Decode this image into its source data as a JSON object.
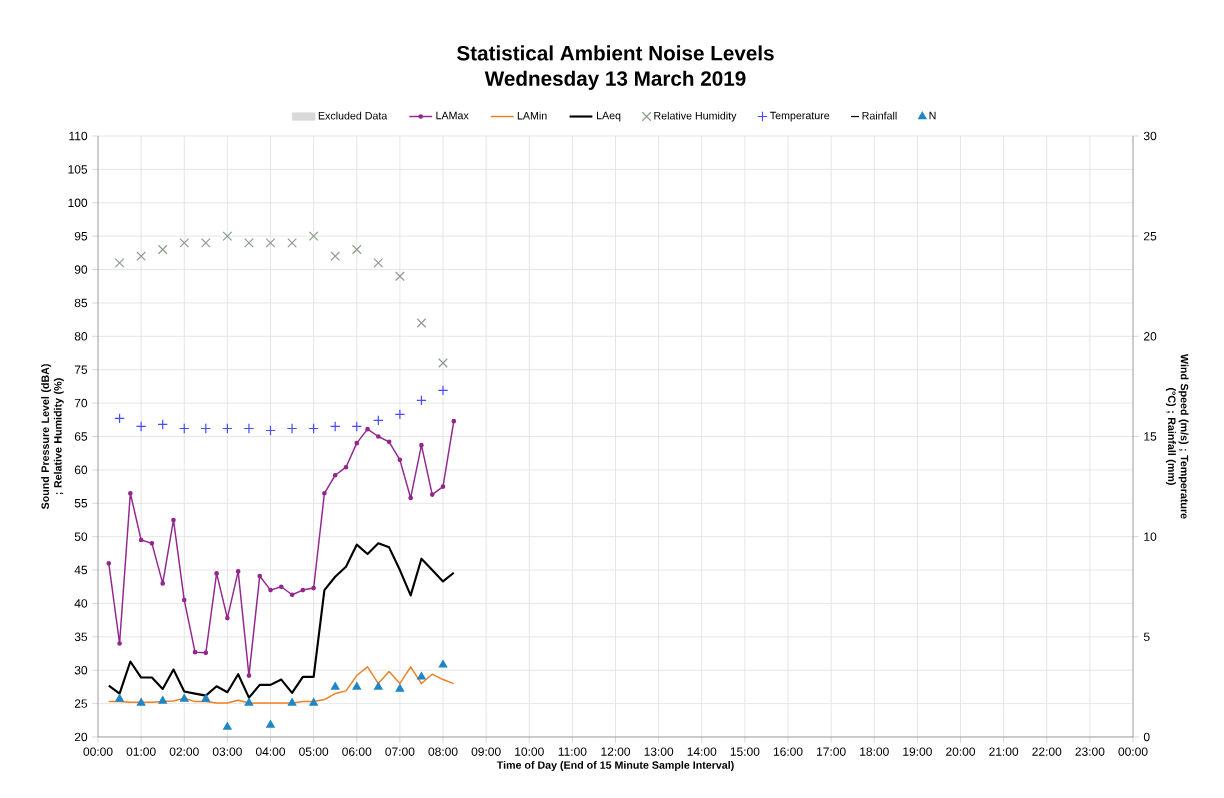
{
  "chart_data": {
    "type": "line",
    "title": "Statistical Ambient Noise Levels",
    "subtitle": "Wednesday 13 March 2019",
    "xlabel": "Time of Day (End of 15 Minute Sample Interval)",
    "ylabel": "Sound Pressure Level (dBA) ; Relative Humidity (%)",
    "y2label": "Wind Speed (m/s) ; Temperature (°C) ; Rainfall (mm)",
    "xlim": [
      0,
      24
    ],
    "xticks": [
      {
        "value": 0,
        "label": "00:00"
      },
      {
        "value": 1,
        "label": "01:00"
      },
      {
        "value": 2,
        "label": "02:00"
      },
      {
        "value": 3,
        "label": "03:00"
      },
      {
        "value": 4,
        "label": "04:00"
      },
      {
        "value": 5,
        "label": "05:00"
      },
      {
        "value": 6,
        "label": "06:00"
      },
      {
        "value": 7,
        "label": "07:00"
      },
      {
        "value": 8,
        "label": "08:00"
      },
      {
        "value": 9,
        "label": "09:00"
      },
      {
        "value": 10,
        "label": "10:00"
      },
      {
        "value": 11,
        "label": "11:00"
      },
      {
        "value": 12,
        "label": "12:00"
      },
      {
        "value": 13,
        "label": "13:00"
      },
      {
        "value": 14,
        "label": "14:00"
      },
      {
        "value": 15,
        "label": "15:00"
      },
      {
        "value": 16,
        "label": "16:00"
      },
      {
        "value": 17,
        "label": "17:00"
      },
      {
        "value": 18,
        "label": "18:00"
      },
      {
        "value": 19,
        "label": "19:00"
      },
      {
        "value": 20,
        "label": "20:00"
      },
      {
        "value": 21,
        "label": "21:00"
      },
      {
        "value": 22,
        "label": "22:00"
      },
      {
        "value": 23,
        "label": "23:00"
      },
      {
        "value": 24,
        "label": "00:00"
      }
    ],
    "ylim": [
      20,
      110
    ],
    "yticks": [
      20,
      25,
      30,
      35,
      40,
      45,
      50,
      55,
      60,
      65,
      70,
      75,
      80,
      85,
      90,
      95,
      100,
      105,
      110
    ],
    "y2lim": [
      0,
      30
    ],
    "y2ticks": [
      0,
      5,
      10,
      15,
      20,
      25,
      30
    ],
    "grid": true,
    "legend": "top",
    "series": [
      {
        "name": "Excluded Data",
        "type": "area",
        "color": "#d9d9d9"
      },
      {
        "name": "LAMax",
        "marker": "circle",
        "color": "#93278f",
        "x": [
          0.25,
          0.5,
          0.75,
          1,
          1.25,
          1.5,
          1.75,
          2,
          2.25,
          2.5,
          2.75,
          3,
          3.25,
          3.5,
          3.75,
          4,
          4.25,
          4.5,
          4.75,
          5,
          5.25,
          5.5,
          5.75,
          6,
          6.25,
          6.5,
          6.75,
          7,
          7.25,
          7.5,
          7.75,
          8,
          8.25
        ],
        "values": [
          46,
          34,
          56.5,
          49.5,
          49,
          43,
          52.5,
          40.5,
          32.7,
          32.6,
          44.5,
          37.8,
          44.8,
          29.2,
          44.1,
          42,
          42.5,
          41.3,
          42,
          42.3,
          56.5,
          59.2,
          60.4,
          64,
          66.1,
          65,
          64.2,
          61.5,
          55.8,
          63.7,
          56.3,
          57.5,
          67.3
        ]
      },
      {
        "name": "LAMin",
        "color": "#f07f21",
        "x": [
          0.25,
          0.5,
          0.75,
          1,
          1.25,
          1.5,
          1.75,
          2,
          2.25,
          2.5,
          2.75,
          3,
          3.25,
          3.5,
          3.75,
          4,
          4.25,
          4.5,
          4.75,
          5,
          5.25,
          5.5,
          5.75,
          6,
          6.25,
          6.5,
          6.75,
          7,
          7.25,
          7.5,
          7.75,
          8,
          8.25
        ],
        "values": [
          25.3,
          25.3,
          25.2,
          25.2,
          25.2,
          25.3,
          25.4,
          25.8,
          25.3,
          25.3,
          25.1,
          25.1,
          25.5,
          25.1,
          25.1,
          25.1,
          25.1,
          25.1,
          25.3,
          25.3,
          25.6,
          26.5,
          26.9,
          29.2,
          30.5,
          28.0,
          29.8,
          28.0,
          30.5,
          28.0,
          29.4,
          28.6,
          28.0
        ]
      },
      {
        "name": "LAeq",
        "color": "#000000",
        "x": [
          0.25,
          0.5,
          0.75,
          1,
          1.25,
          1.5,
          1.75,
          2,
          2.25,
          2.5,
          2.75,
          3,
          3.25,
          3.5,
          3.75,
          4,
          4.25,
          4.5,
          4.75,
          5,
          5.25,
          5.5,
          5.75,
          6,
          6.25,
          6.5,
          6.75,
          7,
          7.25,
          7.5,
          7.75,
          8,
          8.25
        ],
        "values": [
          27.7,
          26.5,
          31.3,
          28.9,
          28.9,
          27.2,
          30.1,
          26.8,
          26.5,
          26.2,
          27.6,
          26.7,
          29.4,
          25.9,
          27.8,
          27.8,
          28.6,
          26.6,
          29.0,
          29.0,
          42,
          44,
          45.5,
          48.8,
          47.4,
          49,
          48.4,
          45,
          41.2,
          46.7,
          45,
          43.3,
          44.6
        ]
      },
      {
        "name": "Relative Humidity",
        "type": "scatter",
        "marker": "cross",
        "color": "#8c9c8c",
        "x": [
          0.5,
          1,
          1.5,
          2,
          2.5,
          3,
          3.5,
          4,
          4.5,
          5,
          5.5,
          6,
          6.5,
          7,
          7.5,
          8
        ],
        "values": [
          91,
          92,
          93,
          94,
          94,
          95,
          94,
          94,
          94,
          95,
          92,
          93,
          91,
          89,
          82,
          76
        ]
      },
      {
        "name": "Temperature",
        "type": "scatter",
        "marker": "plus",
        "axis": "y2",
        "color": "#4a4aff",
        "x": [
          0.5,
          1,
          1.5,
          2,
          2.5,
          3,
          3.5,
          4,
          4.5,
          5,
          5.5,
          6,
          6.5,
          7,
          7.5,
          8
        ],
        "values": [
          15.9,
          15.5,
          15.6,
          15.4,
          15.4,
          15.4,
          15.4,
          15.3,
          15.4,
          15.4,
          15.5,
          15.5,
          15.8,
          16.1,
          16.8,
          17.3
        ]
      },
      {
        "name": "Rainfall",
        "type": "scatter",
        "marker": "minus",
        "color": "#000000"
      },
      {
        "name": "N",
        "type": "scatter",
        "marker": "triangle",
        "axis": "y2",
        "color": "#1f86c8",
        "x": [
          0.5,
          1,
          1.5,
          2,
          2.5,
          3,
          3.5,
          4,
          4.5,
          5,
          5.5,
          6,
          6.5,
          7,
          7.5,
          8
        ],
        "values": [
          1.9,
          1.7,
          1.8,
          1.9,
          1.9,
          0.5,
          1.7,
          0.6,
          1.7,
          1.7,
          2.5,
          2.5,
          2.5,
          2.4,
          3.0,
          3.6
        ]
      }
    ]
  }
}
